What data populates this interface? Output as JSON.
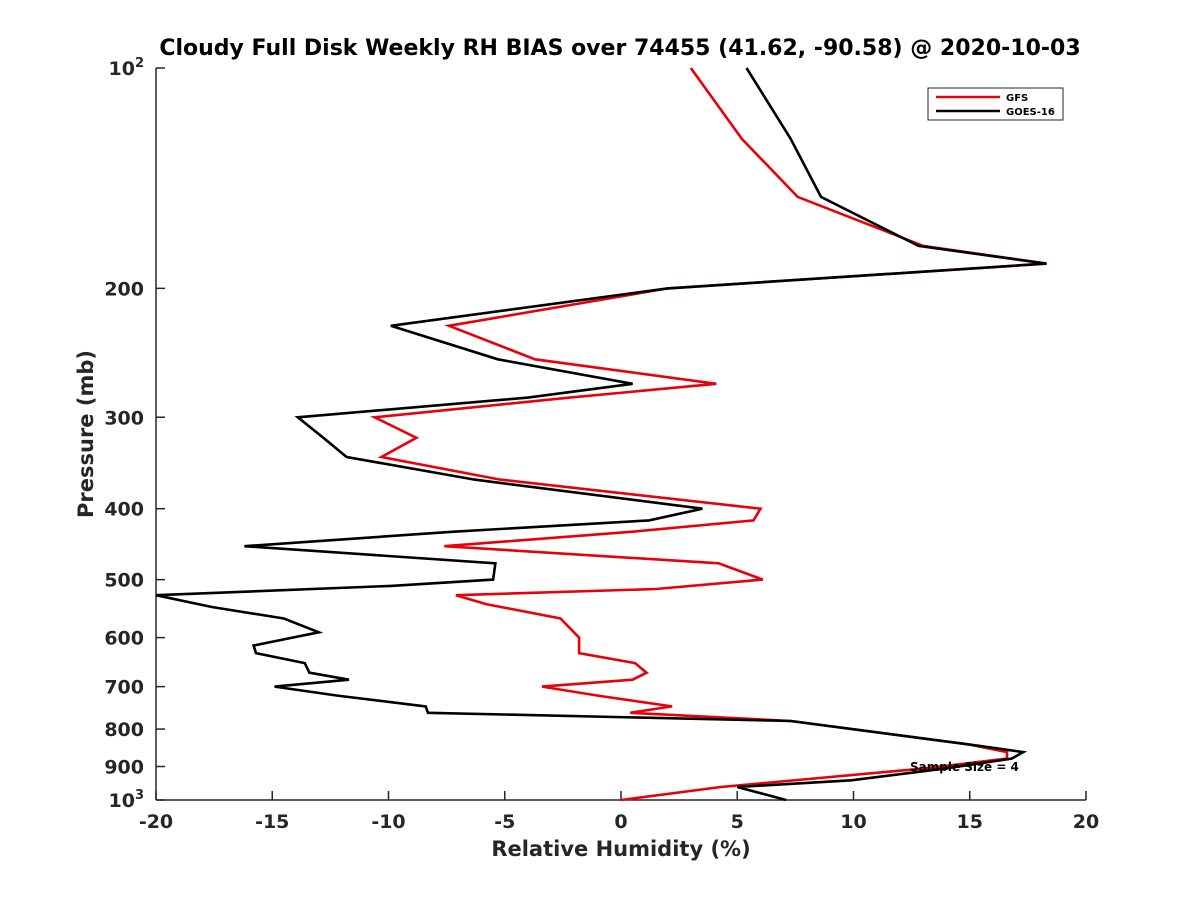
{
  "chart_data": {
    "type": "line",
    "title": "Cloudy Full Disk Weekly RH BIAS over 74455 (41.62, -90.58) @ 2020-10-03",
    "xlabel": "Relative Humidity (%)",
    "ylabel": "Pressure (mb)",
    "xlim": [
      -20,
      20
    ],
    "ylim": [
      100,
      1000
    ],
    "yscale": "log",
    "y_reversed": true,
    "xticks": [
      -20,
      -15,
      -10,
      -5,
      0,
      5,
      10,
      15,
      20
    ],
    "xtick_labels": [
      "-20",
      "-15",
      "-10",
      "-5",
      "0",
      "5",
      "10",
      "15",
      "20"
    ],
    "yticks": [
      100,
      200,
      300,
      400,
      500,
      600,
      700,
      800,
      900,
      1000
    ],
    "ytick_labels": [
      "10^2",
      "200",
      "300",
      "400",
      "500",
      "600",
      "700",
      "800",
      "900",
      "10^3"
    ],
    "grid": false,
    "legend_position": "top-right",
    "annotation": "Sample Size = 4",
    "series": [
      {
        "name": "GFS",
        "color": "#e8000b",
        "points": [
          [
            3.0,
            100
          ],
          [
            5.2,
            125
          ],
          [
            7.6,
            150
          ],
          [
            13.0,
            175
          ],
          [
            18.3,
            185
          ],
          [
            2.0,
            200
          ],
          [
            -7.4,
            225
          ],
          [
            -3.7,
            250
          ],
          [
            4.1,
            270
          ],
          [
            -2.2,
            282
          ],
          [
            -10.6,
            300
          ],
          [
            -8.8,
            320
          ],
          [
            -10.3,
            340
          ],
          [
            -5.2,
            365
          ],
          [
            6.0,
            400
          ],
          [
            5.7,
            415
          ],
          [
            0.5,
            430
          ],
          [
            -7.6,
            450
          ],
          [
            4.2,
            475
          ],
          [
            6.1,
            500
          ],
          [
            1.5,
            515
          ],
          [
            -7.1,
            525
          ],
          [
            -5.8,
            540
          ],
          [
            -2.6,
            565
          ],
          [
            -1.8,
            600
          ],
          [
            -1.8,
            615
          ],
          [
            -1.8,
            630
          ],
          [
            0.6,
            650
          ],
          [
            1.1,
            670
          ],
          [
            0.5,
            685
          ],
          [
            -3.4,
            700
          ],
          [
            -1.0,
            720
          ],
          [
            2.2,
            745
          ],
          [
            0.4,
            760
          ],
          [
            7.3,
            780
          ],
          [
            15.0,
            840
          ],
          [
            16.6,
            860
          ],
          [
            16.6,
            878
          ],
          [
            13.1,
            905
          ],
          [
            4.3,
            960
          ],
          [
            0,
            1000
          ]
        ]
      },
      {
        "name": "GOES-16",
        "color": "#000000",
        "points": [
          [
            5.4,
            100
          ],
          [
            7.3,
            125
          ],
          [
            8.6,
            150
          ],
          [
            12.8,
            175
          ],
          [
            18.3,
            185
          ],
          [
            2.0,
            200
          ],
          [
            -9.9,
            225
          ],
          [
            -5.3,
            250
          ],
          [
            0.5,
            270
          ],
          [
            -4.0,
            282
          ],
          [
            -13.9,
            300
          ],
          [
            -12.8,
            320
          ],
          [
            -11.8,
            340
          ],
          [
            -6.3,
            365
          ],
          [
            3.5,
            400
          ],
          [
            1.2,
            415
          ],
          [
            -7.2,
            430
          ],
          [
            -16.2,
            450
          ],
          [
            -5.4,
            475
          ],
          [
            -5.5,
            500
          ],
          [
            -9.9,
            510
          ],
          [
            -20.0,
            525
          ],
          [
            -17.6,
            545
          ],
          [
            -14.5,
            565
          ],
          [
            -13.0,
            590
          ],
          [
            -15.8,
            615
          ],
          [
            -15.7,
            630
          ],
          [
            -13.6,
            650
          ],
          [
            -13.4,
            670
          ],
          [
            -11.7,
            685
          ],
          [
            -14.9,
            700
          ],
          [
            -12.2,
            720
          ],
          [
            -8.4,
            745
          ],
          [
            -8.3,
            760
          ],
          [
            7.3,
            780
          ],
          [
            15.0,
            840
          ],
          [
            17.3,
            860
          ],
          [
            16.8,
            878
          ],
          [
            14.0,
            905
          ],
          [
            9.9,
            940
          ],
          [
            5.0,
            960
          ],
          [
            7.1,
            1000
          ]
        ]
      }
    ]
  }
}
